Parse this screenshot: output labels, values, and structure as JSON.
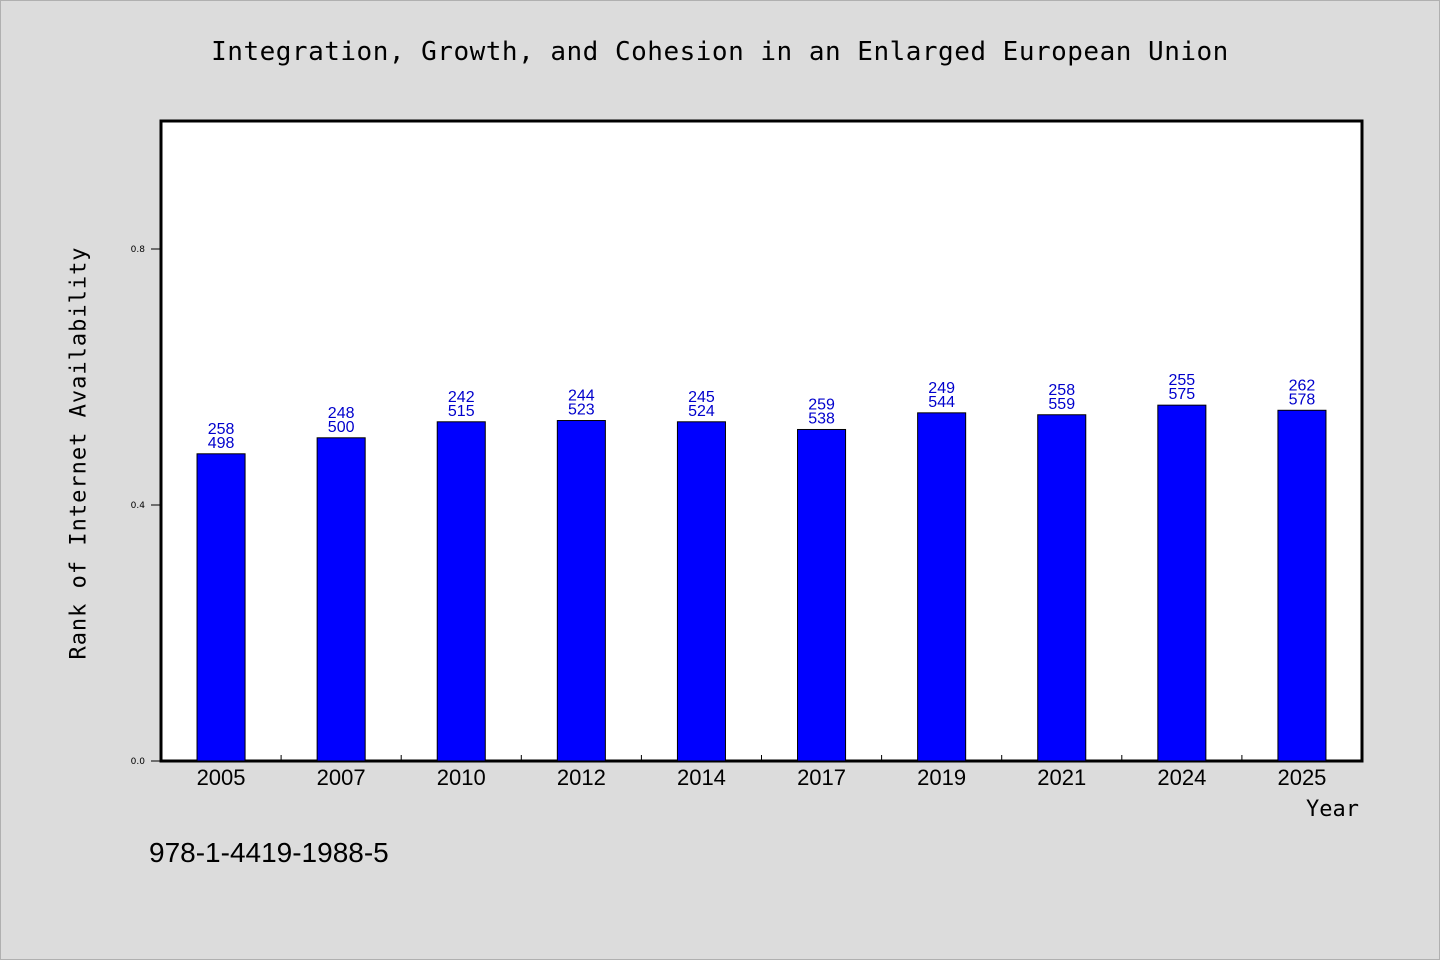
{
  "chart_data": {
    "type": "bar",
    "title": "Integration, Growth, and Cohesion in an Enlarged European Union",
    "xlabel": "Year",
    "ylabel": "Rank of Internet Availability",
    "categories": [
      "2005",
      "2007",
      "2010",
      "2012",
      "2014",
      "2017",
      "2019",
      "2021",
      "2024",
      "2025"
    ],
    "values": [
      0.48,
      0.505,
      0.53,
      0.532,
      0.53,
      0.518,
      0.544,
      0.541,
      0.556,
      0.548
    ],
    "data_labels_top": [
      "258",
      "248",
      "242",
      "244",
      "245",
      "259",
      "249",
      "258",
      "255",
      "262"
    ],
    "data_labels_bottom": [
      "498",
      "500",
      "515",
      "523",
      "524",
      "538",
      "544",
      "559",
      "575",
      "578"
    ],
    "ylim": [
      0,
      1.0
    ],
    "yticks": [
      0.0,
      0.4,
      0.8
    ],
    "ytick_labels": [
      "0.0",
      "0.4",
      "0.8"
    ],
    "grid": false,
    "legend": "none",
    "bar_color": "#0000ff",
    "label_color": "#0000cc"
  },
  "footer": {
    "isbn": "978-1-4419-1988-5"
  }
}
